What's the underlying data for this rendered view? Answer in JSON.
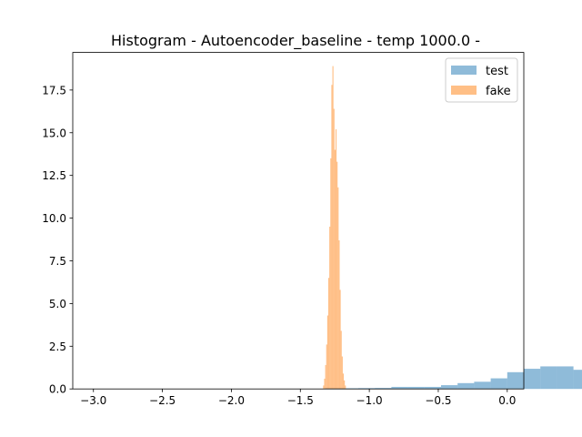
{
  "chart_data": {
    "type": "bar",
    "title": "Histogram - Autoencoder_baseline - temp 1000.0 -",
    "xlabel": "",
    "ylabel": "",
    "xlim": [
      -3.15,
      0.12
    ],
    "ylim": [
      0,
      19.7
    ],
    "grid": false,
    "legend_position": "top-right",
    "x_ticks": [
      -3.0,
      -2.5,
      -2.0,
      -1.5,
      -1.0,
      -0.5,
      0.0
    ],
    "x_tick_labels": [
      "−3.0",
      "−2.5",
      "−2.0",
      "−1.5",
      "−1.0",
      "−0.5",
      "0.0"
    ],
    "y_ticks": [
      0.0,
      2.5,
      5.0,
      7.5,
      10.0,
      12.5,
      15.0,
      17.5
    ],
    "y_tick_labels": [
      "0.0",
      "2.5",
      "5.0",
      "7.5",
      "10.0",
      "12.5",
      "15.0",
      "17.5"
    ],
    "series": [
      {
        "name": "test",
        "color": "#1f77b4",
        "opacity": 0.5,
        "bin_start": -3.0,
        "bin_width": 0.12,
        "values": [
          0.01,
          0.0,
          0.0,
          0.0,
          0.0,
          0.0,
          0.0,
          0.0,
          0.0,
          0.0,
          0.0,
          0.0,
          0.0,
          0.0,
          0.04,
          0.04,
          0.05,
          0.06,
          0.12,
          0.12,
          0.12,
          0.22,
          0.34,
          0.42,
          0.62,
          0.98,
          1.18,
          1.32,
          1.32,
          1.12,
          0.5
        ]
      },
      {
        "name": "fake",
        "color": "#ff7f0e",
        "opacity": 0.5,
        "bin_start": -1.335,
        "bin_width": 0.0075,
        "values": [
          0.2,
          0.6,
          1.4,
          2.6,
          4.3,
          6.5,
          9.5,
          13.5,
          17.8,
          18.9,
          16.4,
          14.0,
          15.2,
          13.3,
          11.8,
          8.7,
          5.8,
          3.4,
          1.9,
          0.9,
          0.5,
          0.2
        ]
      }
    ]
  }
}
